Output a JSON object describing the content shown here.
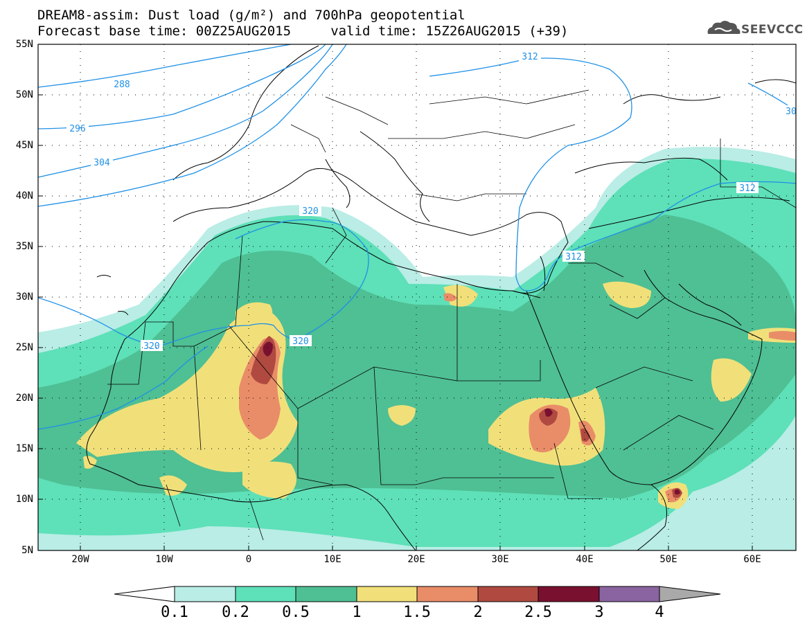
{
  "header": {
    "title_line1": "DREAM8-assim: Dust load (g/m²) and 700hPa geopotential",
    "title_line2": "Forecast base time: 00Z25AUG2015     valid time: 15Z26AUG2015 (+39)",
    "logo_text": "SEEVCCC"
  },
  "axes": {
    "lat_labels": [
      "55N",
      "50N",
      "45N",
      "40N",
      "35N",
      "30N",
      "25N",
      "20N",
      "15N",
      "10N",
      "5N"
    ],
    "lon_labels": [
      "20W",
      "10W",
      "0",
      "10E",
      "20E",
      "30E",
      "40E",
      "50E",
      "60E"
    ]
  },
  "contours": {
    "labels": [
      "288",
      "296",
      "304",
      "312",
      "320",
      "312",
      "320",
      "312",
      "320",
      "30"
    ],
    "color": "#1e90e6"
  },
  "legend": {
    "ticks": [
      "0.1",
      "0.2",
      "0.5",
      "1",
      "1.5",
      "2",
      "2.5",
      "3",
      "4"
    ],
    "colors": [
      "#ffffff",
      "#b9ede6",
      "#5ee0b8",
      "#4fbf94",
      "#f1e07a",
      "#e98d68",
      "#b04a40",
      "#7a1030",
      "#8a64a0",
      "#a9a9a9"
    ]
  }
}
